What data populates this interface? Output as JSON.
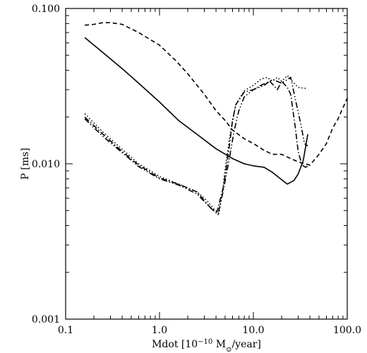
{
  "chart_data": {
    "type": "line",
    "xscale": "log",
    "yscale": "log",
    "xlim": [
      0.1,
      100.0
    ],
    "ylim": [
      0.001,
      0.1
    ],
    "grid": false,
    "xlabel": "Mdot [10",
    "xlabel_exp": "−10",
    "xlabel_unit": " M",
    "xlabel_sub": "⊙",
    "xlabel_tail": "/year]",
    "ylabel": "P [ms]",
    "xticks": [
      {
        "value": 0.1,
        "label": "0.1"
      },
      {
        "value": 1.0,
        "label": "1.0"
      },
      {
        "value": 10.0,
        "label": "10.0"
      },
      {
        "value": 100.0,
        "label": "100.0"
      }
    ],
    "yticks": [
      {
        "value": 0.001,
        "label": "0.001"
      },
      {
        "value": 0.01,
        "label": "0.010"
      },
      {
        "value": 0.1,
        "label": "0.100"
      }
    ],
    "series": [
      {
        "style": "solid",
        "x": [
          0.16,
          0.25,
          0.4,
          0.6,
          1.0,
          1.6,
          2.5,
          4.0,
          6.0,
          8.0,
          10.0,
          13.0,
          16.0,
          20.0,
          23.0,
          27.0,
          30.0,
          34.0,
          38.0
        ],
        "y": [
          0.065,
          0.052,
          0.041,
          0.033,
          0.025,
          0.019,
          0.0155,
          0.0125,
          0.0108,
          0.01,
          0.0097,
          0.0095,
          0.0088,
          0.0079,
          0.0074,
          0.0078,
          0.0086,
          0.0105,
          0.0155
        ]
      },
      {
        "style": "dashed",
        "x": [
          0.16,
          0.2,
          0.25,
          0.3,
          0.4,
          0.6,
          1.0,
          1.5,
          2.0,
          3.0,
          4.0,
          5.0,
          6.0,
          8.0,
          10.0,
          13.0,
          16.0,
          20.0,
          25.0,
          30.0,
          40.0,
          50.0,
          60.0,
          70.0,
          80.0,
          100.0
        ],
        "y": [
          0.078,
          0.079,
          0.081,
          0.081,
          0.079,
          0.07,
          0.058,
          0.046,
          0.038,
          0.028,
          0.022,
          0.019,
          0.0165,
          0.0145,
          0.0135,
          0.0122,
          0.0115,
          0.0115,
          0.0108,
          0.0103,
          0.0098,
          0.0115,
          0.0135,
          0.017,
          0.0195,
          0.0265
        ]
      },
      {
        "style": "dotted",
        "x": [
          0.16,
          0.25,
          0.4,
          0.6,
          1.0,
          1.6,
          2.5,
          3.2,
          3.8,
          4.3,
          4.7,
          5.2,
          5.8,
          6.5,
          8.0,
          10.0,
          12.0,
          14.0,
          16.0,
          18.0,
          20.0,
          23.0,
          26.0,
          30.0,
          38.0
        ],
        "y": [
          0.021,
          0.016,
          0.0124,
          0.01,
          0.0083,
          0.0074,
          0.0066,
          0.0058,
          0.0051,
          0.0048,
          0.0068,
          0.011,
          0.017,
          0.024,
          0.0295,
          0.032,
          0.035,
          0.036,
          0.034,
          0.036,
          0.034,
          0.037,
          0.034,
          0.031,
          0.0305
        ]
      },
      {
        "style": "dash-dot",
        "x": [
          0.16,
          0.25,
          0.4,
          0.6,
          1.0,
          1.6,
          2.5,
          3.5,
          4.1,
          4.8,
          5.5,
          6.0,
          6.5,
          8.0,
          10.0,
          12.0,
          15.0,
          18.0,
          20.0,
          23.0,
          25.0,
          28.0,
          30.0,
          33.0,
          36.0,
          40.0
        ],
        "y": [
          0.02,
          0.0155,
          0.012,
          0.0098,
          0.0081,
          0.0074,
          0.0066,
          0.0052,
          0.0049,
          0.0071,
          0.0125,
          0.019,
          0.024,
          0.029,
          0.03,
          0.032,
          0.034,
          0.03,
          0.034,
          0.031,
          0.028,
          0.017,
          0.012,
          0.0098,
          0.0095,
          0.0098
        ]
      },
      {
        "style": "dash-dot-dot",
        "x": [
          0.16,
          0.25,
          0.4,
          0.6,
          1.0,
          1.6,
          2.5,
          3.5,
          4.2,
          4.8,
          5.5,
          6.2,
          7.0,
          8.0,
          10.0,
          13.0,
          16.0,
          20.0,
          25.0,
          28.0,
          32.0,
          35.0,
          38.0
        ],
        "y": [
          0.0195,
          0.015,
          0.0118,
          0.0096,
          0.008,
          0.0073,
          0.0064,
          0.0052,
          0.0047,
          0.0068,
          0.0105,
          0.016,
          0.022,
          0.027,
          0.03,
          0.032,
          0.035,
          0.033,
          0.036,
          0.026,
          0.018,
          0.0135,
          0.013
        ]
      }
    ]
  }
}
